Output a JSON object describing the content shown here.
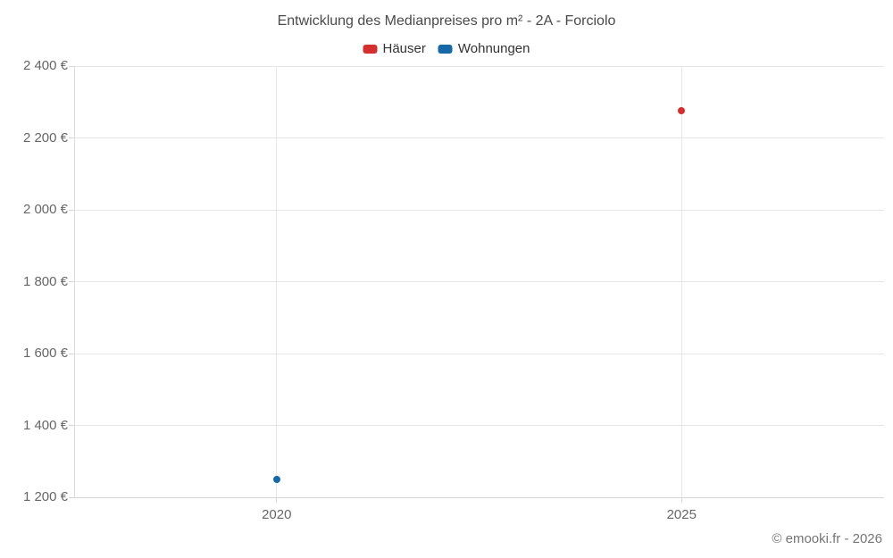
{
  "chart_data": {
    "type": "scatter",
    "title": "Entwicklung des Medianpreises pro m² - 2A - Forciolo",
    "xlabel": "",
    "ylabel": "",
    "xlim": [
      2017.5,
      2027.5
    ],
    "ylim": [
      1200,
      2400
    ],
    "grid": true,
    "legend_position": "top-center",
    "x_ticks": [
      {
        "value": 2020,
        "label": "2020"
      },
      {
        "value": 2025,
        "label": "2025"
      }
    ],
    "y_ticks": [
      {
        "value": 1200,
        "label": "1 200 €"
      },
      {
        "value": 1400,
        "label": "1 400 €"
      },
      {
        "value": 1600,
        "label": "1 600 €"
      },
      {
        "value": 1800,
        "label": "1 800 €"
      },
      {
        "value": 2000,
        "label": "2 000 €"
      },
      {
        "value": 2200,
        "label": "2 200 €"
      },
      {
        "value": 2400,
        "label": "2 400 €"
      }
    ],
    "series": [
      {
        "name": "Häuser",
        "color": "#d32f2f",
        "points": [
          {
            "x": 2025,
            "y": 2275
          }
        ]
      },
      {
        "name": "Wohnungen",
        "color": "#1769a6",
        "points": [
          {
            "x": 2020,
            "y": 1250
          }
        ]
      }
    ]
  },
  "footer": {
    "copyright": "© emooki.fr - 2026"
  },
  "colors": {
    "background": "#ffffff",
    "grid": "#e6e6e6",
    "axis": "#d5d5d5",
    "title_text": "#4a4a4a",
    "legend_text": "#333333",
    "tick_text": "#666666",
    "credits_text": "#757575"
  }
}
